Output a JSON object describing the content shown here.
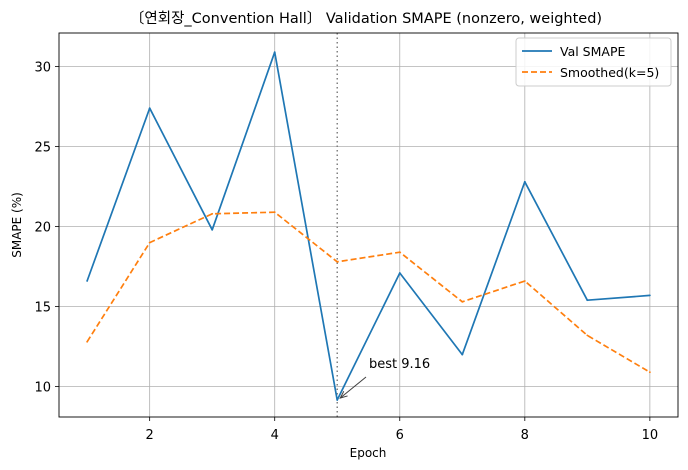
{
  "chart_data": {
    "type": "line",
    "title": "〔연회장_Convention Hall〕 Validation SMAPE (nonzero, weighted)",
    "xlabel": "Epoch",
    "ylabel": "SMAPE (%)",
    "x": [
      1,
      2,
      3,
      4,
      5,
      6,
      7,
      8,
      9,
      10
    ],
    "xlim": [
      0.55,
      10.45
    ],
    "ylim": [
      8.1,
      32.1
    ],
    "xticks": [
      2,
      4,
      6,
      8,
      10
    ],
    "yticks": [
      10,
      15,
      20,
      25,
      30
    ],
    "grid": true,
    "legend_position": "top-right",
    "series": [
      {
        "name": "Val SMAPE",
        "color": "#1f77b4",
        "style": "solid",
        "values": [
          16.6,
          27.4,
          19.8,
          30.9,
          9.16,
          17.1,
          12.0,
          22.8,
          15.4,
          15.7
        ]
      },
      {
        "name": "Smoothed(k=5)",
        "color": "#ff7f0e",
        "style": "dashed",
        "values": [
          12.8,
          19.0,
          20.8,
          20.9,
          17.8,
          18.4,
          15.3,
          16.6,
          13.2,
          10.9
        ]
      }
    ],
    "vline": {
      "x": 5,
      "color": "#808080",
      "style": "dotted"
    },
    "annotation": {
      "text": "best 9.16",
      "x": 5,
      "y": 9.16
    }
  }
}
